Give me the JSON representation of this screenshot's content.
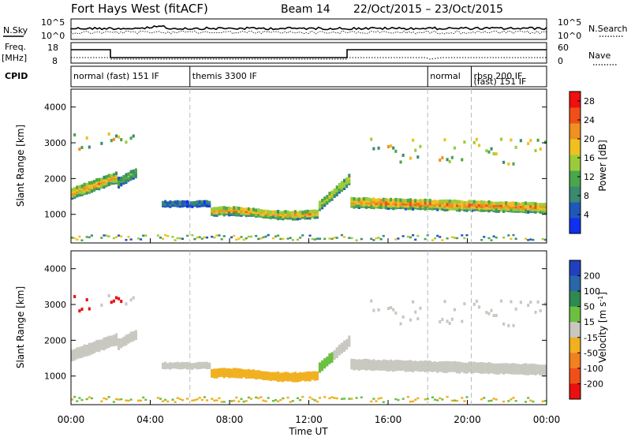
{
  "header": {
    "title": "Fort Hays West (fitACF)",
    "beam": "Beam 14",
    "date_range": "22/Oct/2015 – 23/Oct/2015"
  },
  "panel_labels": {
    "nsky": "N.Sky",
    "nsky_ticks": [
      "10^5",
      "10^0"
    ],
    "nsearch": "N.Search",
    "nsearch_ticks": [
      "10^5",
      "10^0"
    ],
    "freq_line1": "Freq.",
    "freq_line2": "[MHz]",
    "freq_ticks": [
      "18",
      "8"
    ],
    "nave": "Nave",
    "nave_ticks": [
      "60",
      "0"
    ],
    "cpid": "CPID"
  },
  "cpid_segments": [
    {
      "start": 0,
      "end": 6,
      "label": "normal (fast) 151 IF"
    },
    {
      "start": 6,
      "end": 18,
      "label": "themis 3300 IF"
    },
    {
      "start": 18,
      "end": 20.2,
      "label": "normal"
    },
    {
      "start": 20.2,
      "end": 24,
      "label": "rbsp 200 IF"
    },
    {
      "start": 20.2,
      "end": 24,
      "label": "(fast) 151 IF",
      "row": 2
    }
  ],
  "chart_data": [
    {
      "type": "heatmap",
      "name": "power",
      "ylabel": "Slant Range [km]",
      "xlim": [
        0,
        24
      ],
      "ylim": [
        200,
        4500
      ],
      "yticks": [
        1000,
        2000,
        3000,
        4000
      ],
      "colorbar": {
        "label": "Power [dB]",
        "ticks": [
          4,
          8,
          12,
          16,
          20,
          24,
          28
        ],
        "range": [
          0,
          30
        ],
        "colors": [
          "#1030f0",
          "#2058b8",
          "#3a8a70",
          "#4aa64a",
          "#9acc3a",
          "#f0c020",
          "#f09020",
          "#f05018",
          "#f01010"
        ]
      }
    },
    {
      "type": "heatmap",
      "name": "velocity",
      "ylabel": "Slant Range [km]",
      "xlabel": "Time UT",
      "xlim": [
        0,
        24
      ],
      "ylim": [
        200,
        4500
      ],
      "yticks": [
        1000,
        2000,
        3000,
        4000
      ],
      "xticks": [
        "00:00",
        "04:00",
        "08:00",
        "12:00",
        "16:00",
        "20:00",
        "00:00"
      ],
      "colorbar": {
        "label": "Velocity [m s^-1]",
        "ticks": [
          200,
          100,
          50,
          15,
          -15,
          -50,
          -100,
          -200
        ],
        "colors": [
          "#2040c0",
          "#2a66a8",
          "#2f8a52",
          "#6cc040",
          "#c8c8c0",
          "#f0b020",
          "#f08020",
          "#f05018",
          "#e81010"
        ]
      }
    }
  ]
}
